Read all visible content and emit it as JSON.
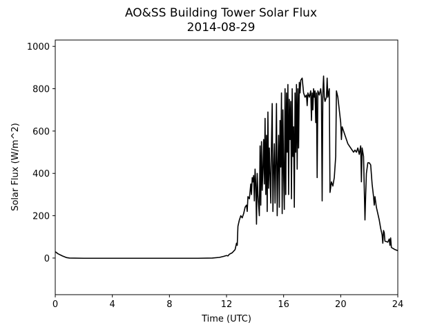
{
  "chart_data": {
    "type": "line",
    "title": "AO&SS Building Tower Solar Flux",
    "subtitle": "2014-08-29",
    "x_label": "Time (UTC)",
    "y_label": "Solar Flux (W/m^2)",
    "xlim": [
      0,
      24
    ],
    "xticks": [
      0,
      4,
      8,
      12,
      16,
      20,
      24
    ],
    "ylim": [
      -173,
      1030
    ],
    "yticks": [
      0,
      200,
      400,
      600,
      800,
      1000
    ],
    "series": [
      {
        "color": "#000000",
        "x": [
          0,
          0.2,
          0.5,
          0.8,
          1,
          2,
          4,
          6,
          8,
          10,
          11,
          11.5,
          11.8,
          12,
          12.1,
          12.2,
          12.4,
          12.6,
          12.7,
          12.75,
          12.8,
          12.9,
          13,
          13.1,
          13.2,
          13.3,
          13.4,
          13.45,
          13.5,
          13.6,
          13.7,
          13.75,
          13.8,
          13.85,
          13.9,
          13.95,
          14,
          14.05,
          14.1,
          14.15,
          14.2,
          14.3,
          14.35,
          14.4,
          14.45,
          14.5,
          14.55,
          14.6,
          14.65,
          14.7,
          14.75,
          14.8,
          14.85,
          14.9,
          14.95,
          15,
          15.1,
          15.15,
          15.2,
          15.25,
          15.3,
          15.35,
          15.4,
          15.45,
          15.5,
          15.55,
          15.6,
          15.65,
          15.7,
          15.75,
          15.8,
          15.85,
          15.9,
          15.95,
          16,
          16.05,
          16.1,
          16.15,
          16.2,
          16.25,
          16.3,
          16.35,
          16.4,
          16.45,
          16.5,
          16.55,
          16.6,
          16.65,
          16.7,
          16.75,
          16.8,
          16.85,
          16.9,
          16.95,
          17,
          17.05,
          17.1,
          17.15,
          17.2,
          17.3,
          17.4,
          17.5,
          17.6,
          17.65,
          17.7,
          17.8,
          17.9,
          17.95,
          18,
          18.05,
          18.1,
          18.15,
          18.2,
          18.25,
          18.3,
          18.35,
          18.4,
          18.5,
          18.6,
          18.65,
          18.7,
          18.75,
          18.8,
          18.85,
          18.9,
          19,
          19.05,
          19.1,
          19.2,
          19.25,
          19.35,
          19.45,
          19.55,
          19.65,
          19.7,
          19.8,
          19.9,
          20,
          20.05,
          20.1,
          20.3,
          20.5,
          20.7,
          20.9,
          21,
          21.1,
          21.2,
          21.3,
          21.4,
          21.45,
          21.5,
          21.6,
          21.7,
          21.75,
          21.8,
          21.9,
          22,
          22.1,
          22.2,
          22.3,
          22.35,
          22.4,
          22.5,
          22.6,
          22.7,
          22.8,
          22.9,
          22.95,
          23,
          23.05,
          23.1,
          23.3,
          23.4,
          23.45,
          23.5,
          23.55,
          23.8,
          24
        ],
        "values": [
          30,
          20,
          10,
          2,
          0,
          -1,
          -1,
          -1,
          -1,
          -1,
          0,
          3,
          8,
          12,
          10,
          18,
          25,
          40,
          70,
          60,
          150,
          180,
          200,
          190,
          210,
          240,
          250,
          220,
          290,
          280,
          350,
          300,
          380,
          360,
          390,
          270,
          420,
          350,
          160,
          400,
          300,
          200,
          530,
          250,
          550,
          320,
          420,
          560,
          350,
          660,
          300,
          580,
          220,
          690,
          330,
          520,
          260,
          540,
          730,
          220,
          420,
          540,
          260,
          450,
          730,
          200,
          430,
          580,
          240,
          650,
          430,
          780,
          210,
          700,
          400,
          230,
          800,
          300,
          780,
          500,
          820,
          300,
          750,
          560,
          740,
          280,
          800,
          480,
          620,
          240,
          780,
          500,
          820,
          420,
          800,
          520,
          830,
          780,
          840,
          850,
          780,
          760,
          770,
          720,
          780,
          760,
          790,
          650,
          780,
          700,
          800,
          760,
          790,
          640,
          780,
          380,
          790,
          770,
          800,
          760,
          270,
          780,
          860,
          760,
          740,
          760,
          850,
          760,
          800,
          310,
          360,
          340,
          380,
          480,
          790,
          760,
          700,
          640,
          560,
          620,
          580,
          540,
          520,
          500,
          510,
          500,
          520,
          490,
          530,
          360,
          520,
          480,
          180,
          300,
          400,
          450,
          450,
          440,
          350,
          290,
          250,
          290,
          240,
          210,
          180,
          140,
          110,
          70,
          130,
          120,
          80,
          75,
          90,
          60,
          95,
          50,
          40,
          35
        ]
      }
    ]
  }
}
